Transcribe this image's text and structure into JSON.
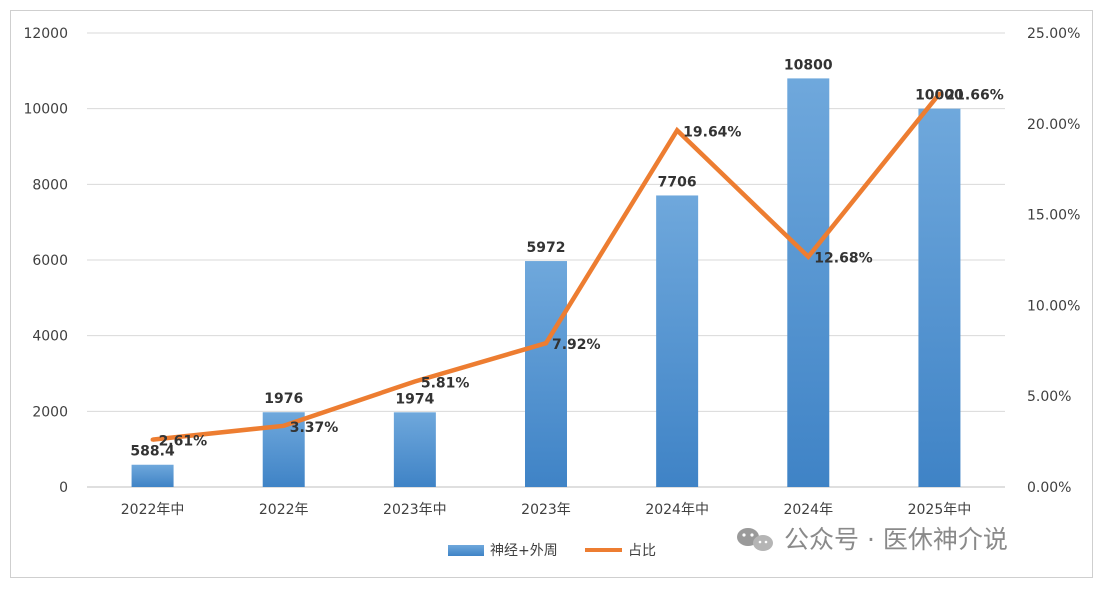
{
  "chart_data": {
    "type": "bar",
    "categories": [
      "2022年中",
      "2022年",
      "2023年中",
      "2023年",
      "2024年中",
      "2024年",
      "2025年中"
    ],
    "series": [
      {
        "name": "神经+外周",
        "type": "bar",
        "axis": "left",
        "values": [
          588.4,
          1976,
          1974,
          5972,
          7706,
          10800,
          10000
        ],
        "labels": [
          "588.4",
          "1976",
          "1974",
          "5972",
          "7706",
          "10800",
          "10000"
        ]
      },
      {
        "name": "占比",
        "type": "line",
        "axis": "right",
        "values": [
          2.61,
          3.37,
          5.81,
          7.92,
          19.64,
          12.68,
          21.66
        ],
        "labels": [
          "2.61%",
          "3.37%",
          "5.81%",
          "7.92%",
          "19.64%",
          "12.68%",
          "21.66%"
        ]
      }
    ],
    "y_left": {
      "min": 0,
      "max": 12000,
      "ticks": [
        "0",
        "2000",
        "4000",
        "6000",
        "8000",
        "10000",
        "12000"
      ]
    },
    "y_right": {
      "min": 0,
      "max": 25,
      "ticks": [
        "0.00%",
        "5.00%",
        "10.00%",
        "15.00%",
        "20.00%",
        "25.00%"
      ]
    },
    "grid": true,
    "legend_position": "bottom",
    "colors": {
      "bar": "#5B9BD5",
      "bar_dark": "#3F83C6",
      "line": "#ED7D31",
      "grid": "#D9D9D9",
      "axis": "#BFBFBF"
    }
  },
  "watermark": {
    "text": "公众号 · 医休神介说",
    "icon": "wechat-icon"
  }
}
